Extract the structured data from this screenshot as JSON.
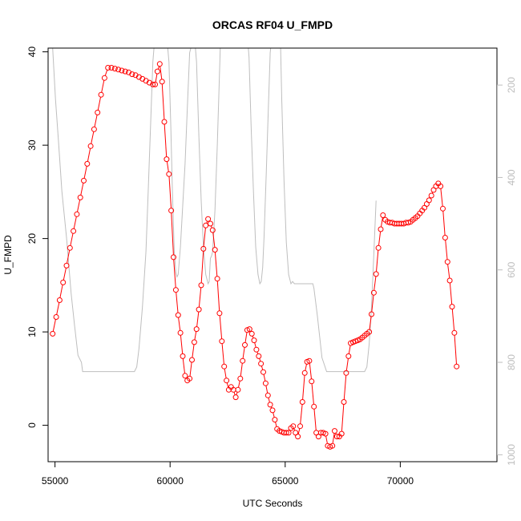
{
  "chart_data": {
    "type": "scatter",
    "title": "ORCAS RF04 U_FMPD",
    "xlabel": "UTC Seconds",
    "ylabel": "U_FMPD",
    "xlim": [
      54700,
      74200
    ],
    "ylim": [
      -3.9,
      40.4
    ],
    "x_ticks": [
      55000,
      60000,
      65000,
      70000
    ],
    "y_ticks": [
      0,
      10,
      20,
      30,
      40
    ],
    "y2_ticks": [
      200,
      400,
      600,
      800,
      1000
    ],
    "y2_range_top_to_bottom": [
      120,
      1015
    ],
    "grid": false,
    "colors": {
      "series": "#ff0000",
      "secondary": "#bebebe"
    },
    "series": [
      {
        "points": [
          [
            54900,
            9.8
          ],
          [
            55050,
            11.6
          ],
          [
            55200,
            13.4
          ],
          [
            55350,
            15.3
          ],
          [
            55500,
            17.1
          ],
          [
            55650,
            19.0
          ],
          [
            55800,
            20.8
          ],
          [
            55950,
            22.6
          ],
          [
            56100,
            24.4
          ],
          [
            56250,
            26.2
          ],
          [
            56400,
            28.0
          ],
          [
            56550,
            29.9
          ],
          [
            56700,
            31.7
          ],
          [
            56850,
            33.5
          ],
          [
            57000,
            35.4
          ],
          [
            57150,
            37.2
          ],
          [
            57300,
            38.3
          ],
          [
            57450,
            38.3
          ],
          [
            57600,
            38.2
          ],
          [
            57750,
            38.1
          ],
          [
            57900,
            38.0
          ],
          [
            58050,
            37.9
          ],
          [
            58200,
            37.8
          ],
          [
            58350,
            37.6
          ],
          [
            58500,
            37.5
          ],
          [
            58650,
            37.3
          ],
          [
            58800,
            37.1
          ],
          [
            58950,
            36.9
          ],
          [
            59100,
            36.7
          ],
          [
            59250,
            36.5
          ],
          [
            59350,
            36.5
          ],
          [
            59450,
            37.9
          ],
          [
            59550,
            38.7
          ],
          [
            59650,
            36.8
          ],
          [
            59750,
            32.5
          ],
          [
            59850,
            28.5
          ],
          [
            59950,
            26.9
          ],
          [
            60050,
            23.0
          ],
          [
            60150,
            18.0
          ],
          [
            60250,
            14.5
          ],
          [
            60350,
            11.8
          ],
          [
            60450,
            9.9
          ],
          [
            60550,
            7.4
          ],
          [
            60650,
            5.3
          ],
          [
            60750,
            4.8
          ],
          [
            60850,
            5.0
          ],
          [
            60950,
            7.0
          ],
          [
            61050,
            8.9
          ],
          [
            61150,
            10.3
          ],
          [
            61250,
            12.4
          ],
          [
            61350,
            15.0
          ],
          [
            61450,
            18.9
          ],
          [
            61550,
            21.4
          ],
          [
            61650,
            22.1
          ],
          [
            61750,
            21.6
          ],
          [
            61850,
            20.9
          ],
          [
            61950,
            18.8
          ],
          [
            62050,
            15.7
          ],
          [
            62150,
            12.0
          ],
          [
            62250,
            9.0
          ],
          [
            62350,
            6.3
          ],
          [
            62450,
            4.8
          ],
          [
            62550,
            3.8
          ],
          [
            62650,
            4.1
          ],
          [
            62750,
            3.8
          ],
          [
            62850,
            3.0
          ],
          [
            62950,
            3.8
          ],
          [
            63050,
            5.0
          ],
          [
            63150,
            6.9
          ],
          [
            63250,
            8.6
          ],
          [
            63350,
            10.2
          ],
          [
            63450,
            10.3
          ],
          [
            63550,
            9.8
          ],
          [
            63650,
            9.1
          ],
          [
            63750,
            8.1
          ],
          [
            63850,
            7.4
          ],
          [
            63950,
            6.6
          ],
          [
            64050,
            5.7
          ],
          [
            64150,
            4.5
          ],
          [
            64250,
            3.2
          ],
          [
            64350,
            2.2
          ],
          [
            64450,
            1.6
          ],
          [
            64550,
            0.6
          ],
          [
            64650,
            -0.4
          ],
          [
            64750,
            -0.6
          ],
          [
            64850,
            -0.7
          ],
          [
            64950,
            -0.8
          ],
          [
            65050,
            -0.8
          ],
          [
            65150,
            -0.8
          ],
          [
            65250,
            -0.3
          ],
          [
            65350,
            -0.1
          ],
          [
            65450,
            -0.8
          ],
          [
            65550,
            -1.2
          ],
          [
            65650,
            -0.1
          ],
          [
            65750,
            2.5
          ],
          [
            65850,
            5.6
          ],
          [
            65950,
            6.8
          ],
          [
            66050,
            6.9
          ],
          [
            66150,
            4.7
          ],
          [
            66250,
            2.0
          ],
          [
            66350,
            -0.8
          ],
          [
            66450,
            -1.2
          ],
          [
            66550,
            -0.8
          ],
          [
            66650,
            -0.8
          ],
          [
            66750,
            -0.9
          ],
          [
            66850,
            -2.2
          ],
          [
            66950,
            -2.3
          ],
          [
            67050,
            -2.2
          ],
          [
            67150,
            -0.6
          ],
          [
            67250,
            -1.2
          ],
          [
            67350,
            -1.2
          ],
          [
            67450,
            -0.9
          ],
          [
            67550,
            2.5
          ],
          [
            67650,
            5.6
          ],
          [
            67750,
            7.4
          ],
          [
            67850,
            8.8
          ],
          [
            67950,
            8.9
          ],
          [
            68050,
            9.0
          ],
          [
            68150,
            9.1
          ],
          [
            68250,
            9.2
          ],
          [
            68350,
            9.4
          ],
          [
            68450,
            9.6
          ],
          [
            68550,
            9.8
          ],
          [
            68650,
            10.0
          ],
          [
            68750,
            11.9
          ],
          [
            68850,
            14.2
          ],
          [
            68950,
            16.2
          ],
          [
            69050,
            19.0
          ],
          [
            69150,
            21.0
          ],
          [
            69250,
            22.5
          ],
          [
            69350,
            22.0
          ],
          [
            69450,
            21.8
          ],
          [
            69550,
            21.7
          ],
          [
            69650,
            21.7
          ],
          [
            69750,
            21.6
          ],
          [
            69850,
            21.6
          ],
          [
            69950,
            21.6
          ],
          [
            70050,
            21.6
          ],
          [
            70150,
            21.6
          ],
          [
            70250,
            21.7
          ],
          [
            70350,
            21.7
          ],
          [
            70450,
            21.8
          ],
          [
            70550,
            22.0
          ],
          [
            70650,
            22.2
          ],
          [
            70750,
            22.4
          ],
          [
            70850,
            22.7
          ],
          [
            70950,
            23.0
          ],
          [
            71050,
            23.3
          ],
          [
            71150,
            23.7
          ],
          [
            71250,
            24.1
          ],
          [
            71350,
            24.6
          ],
          [
            71450,
            25.2
          ],
          [
            71550,
            25.6
          ],
          [
            71650,
            25.9
          ],
          [
            71750,
            25.6
          ],
          [
            71850,
            23.2
          ],
          [
            71950,
            20.1
          ],
          [
            72050,
            17.5
          ],
          [
            72150,
            15.5
          ],
          [
            72250,
            12.7
          ],
          [
            72350,
            9.9
          ],
          [
            72450,
            6.3
          ]
        ]
      },
      {
        "axis": "right",
        "points": [
          [
            54900,
            120
          ],
          [
            55020,
            230
          ],
          [
            55150,
            320
          ],
          [
            55300,
            430
          ],
          [
            55500,
            530
          ],
          [
            55700,
            650
          ],
          [
            55850,
            720
          ],
          [
            56000,
            785
          ],
          [
            56150,
            800
          ],
          [
            56200,
            820
          ],
          [
            56500,
            820
          ],
          [
            57000,
            820
          ],
          [
            57500,
            820
          ],
          [
            58000,
            820
          ],
          [
            58450,
            820
          ],
          [
            58550,
            810
          ],
          [
            58650,
            770
          ],
          [
            58800,
            680
          ],
          [
            58950,
            560
          ],
          [
            59050,
            430
          ],
          [
            59150,
            290
          ],
          [
            59250,
            150
          ],
          [
            59300,
            120
          ],
          [
            59900,
            120
          ],
          [
            59950,
            150
          ],
          [
            60030,
            290
          ],
          [
            60100,
            430
          ],
          [
            60180,
            560
          ],
          [
            60250,
            605
          ],
          [
            60300,
            615
          ],
          [
            60350,
            610
          ],
          [
            60450,
            550
          ],
          [
            60550,
            460
          ],
          [
            60650,
            370
          ],
          [
            60750,
            250
          ],
          [
            60850,
            130
          ],
          [
            60900,
            120
          ],
          [
            61100,
            120
          ],
          [
            61150,
            150
          ],
          [
            61250,
            310
          ],
          [
            61350,
            450
          ],
          [
            61450,
            550
          ],
          [
            61550,
            610
          ],
          [
            61650,
            630
          ],
          [
            61700,
            625
          ],
          [
            61750,
            575
          ],
          [
            61800,
            570
          ],
          [
            61850,
            560
          ],
          [
            61950,
            470
          ],
          [
            62050,
            330
          ],
          [
            62130,
            200
          ],
          [
            62180,
            120
          ],
          [
            63400,
            120
          ],
          [
            63430,
            140
          ],
          [
            63520,
            290
          ],
          [
            63620,
            430
          ],
          [
            63720,
            550
          ],
          [
            63820,
            610
          ],
          [
            63900,
            630
          ],
          [
            63960,
            625
          ],
          [
            64020,
            595
          ],
          [
            64080,
            530
          ],
          [
            64180,
            390
          ],
          [
            64270,
            250
          ],
          [
            64350,
            130
          ],
          [
            64370,
            120
          ],
          [
            64800,
            120
          ],
          [
            64850,
            230
          ],
          [
            64950,
            410
          ],
          [
            65050,
            540
          ],
          [
            65150,
            610
          ],
          [
            65250,
            630
          ],
          [
            65320,
            625
          ],
          [
            65400,
            630
          ],
          [
            65850,
            630
          ],
          [
            66000,
            630
          ],
          [
            66200,
            630
          ],
          [
            66250,
            640
          ],
          [
            66400,
            700
          ],
          [
            66600,
            790
          ],
          [
            66700,
            805
          ],
          [
            66800,
            820
          ],
          [
            67500,
            820
          ],
          [
            68000,
            820
          ],
          [
            68450,
            820
          ],
          [
            68550,
            810
          ],
          [
            68650,
            760
          ],
          [
            68750,
            680
          ],
          [
            68850,
            565
          ],
          [
            68950,
            450
          ]
        ]
      }
    ]
  }
}
